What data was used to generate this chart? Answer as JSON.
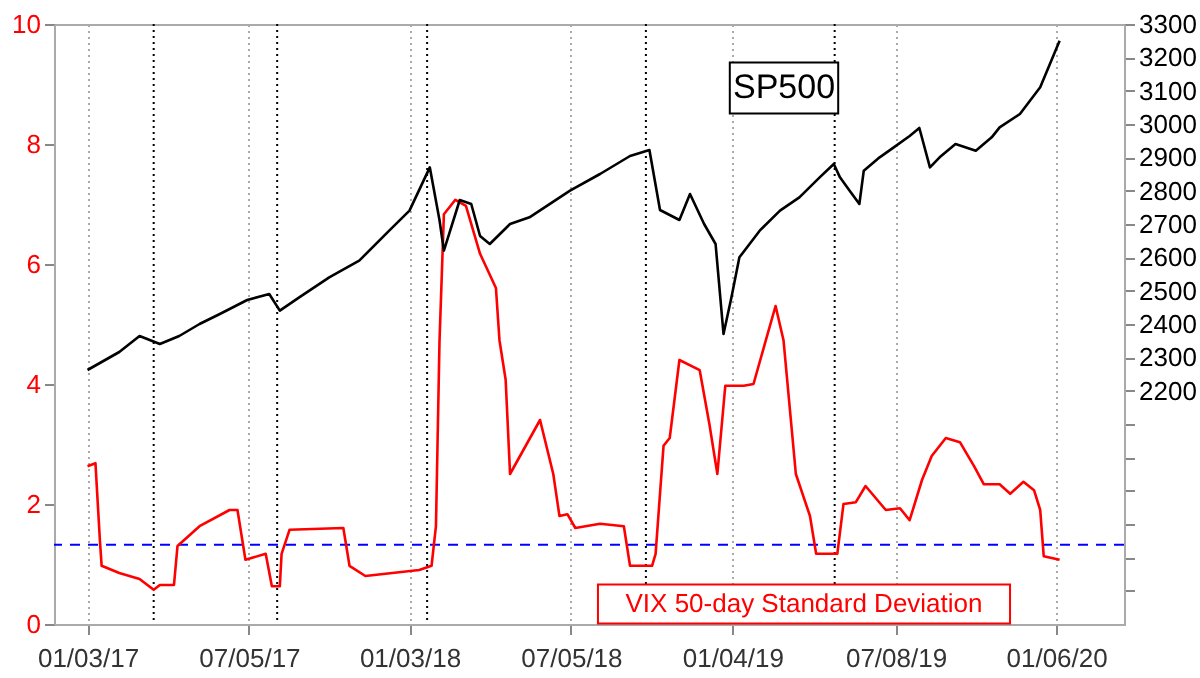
{
  "chart_data": {
    "type": "line",
    "xlim": [
      "2016-11-26",
      "2020-03-23"
    ],
    "xticks": [
      {
        "value": "2017-01-03",
        "label": "01/03/17"
      },
      {
        "value": "2017-07-05",
        "label": "07/05/17"
      },
      {
        "value": "2018-01-03",
        "label": "01/03/18"
      },
      {
        "value": "2018-07-05",
        "label": "07/05/18"
      },
      {
        "value": "2019-01-04",
        "label": "01/04/19"
      },
      {
        "value": "2019-07-08",
        "label": "07/08/19"
      },
      {
        "value": "2020-01-06",
        "label": "01/06/20"
      }
    ],
    "ylim": [
      0,
      10
    ],
    "yticks": [
      0,
      2,
      4,
      6,
      8,
      10
    ],
    "y2lim": [
      1500,
      3300
    ],
    "y2ticks": [
      {
        "value": 1600,
        "label": null
      },
      {
        "value": 1700,
        "label": null
      },
      {
        "value": 1800,
        "label": null
      },
      {
        "value": 1900,
        "label": null
      },
      {
        "value": 2000,
        "label": null
      },
      {
        "value": 2100,
        "label": null
      },
      2200,
      2300,
      2400,
      2500,
      2600,
      2700,
      2800,
      2900,
      3000,
      3100,
      3200,
      3300
    ],
    "grid": "x",
    "legend": false,
    "ref_lines": [
      {
        "axis": "y",
        "value": 1.32,
        "color": "#0000ff",
        "line_style": "dashed"
      },
      {
        "axis": "x",
        "value": "2017-03-19",
        "color": "#000000",
        "line_style": "dotted"
      },
      {
        "axis": "x",
        "value": "2017-08-06",
        "color": "#000000",
        "line_style": "dotted"
      },
      {
        "axis": "x",
        "value": "2018-01-23",
        "color": "#000000",
        "line_style": "dotted"
      },
      {
        "axis": "x",
        "value": "2018-09-28",
        "color": "#000000",
        "line_style": "dotted"
      },
      {
        "axis": "x",
        "value": "2019-04-30",
        "color": "#000000",
        "line_style": "dotted"
      }
    ],
    "series": [
      {
        "name": "SP500",
        "color": "#000000",
        "axis": "y2",
        "x": [
          "2017-01-03",
          "2017-02-08",
          "2017-03-03",
          "2017-03-26",
          "2017-04-17",
          "2017-05-10",
          "2017-06-02",
          "2017-07-03",
          "2017-07-28",
          "2017-08-09",
          "2017-08-31",
          "2017-10-04",
          "2017-11-07",
          "2017-12-11",
          "2018-01-03",
          "2018-01-26",
          "2018-02-06",
          "2018-02-11",
          "2018-03-01",
          "2018-03-14",
          "2018-03-24",
          "2018-04-04",
          "2018-04-27",
          "2018-05-19",
          "2018-07-04",
          "2018-08-07",
          "2018-09-10",
          "2018-10-02",
          "2018-10-14",
          "2018-11-05",
          "2018-11-17",
          "2018-12-03",
          "2018-12-16",
          "2018-12-25",
          "2019-01-03",
          "2019-01-12",
          "2019-02-04",
          "2019-02-27",
          "2019-03-21",
          "2019-04-13",
          "2019-04-29",
          "2019-05-06",
          "2019-05-17",
          "2019-05-28",
          "2019-06-02",
          "2019-06-20",
          "2019-07-06",
          "2019-07-24",
          "2019-08-04",
          "2019-08-16",
          "2019-08-27",
          "2019-09-14",
          "2019-10-07",
          "2019-10-25",
          "2019-11-03",
          "2019-11-26",
          "2019-12-19",
          "2020-01-10"
        ],
        "values": [
          2262,
          2316,
          2364,
          2340,
          2364,
          2400,
          2430,
          2472,
          2490,
          2440,
          2480,
          2540,
          2590,
          2680,
          2740,
          2870,
          2712,
          2620,
          2772,
          2760,
          2664,
          2640,
          2700,
          2720,
          2800,
          2850,
          2904,
          2922,
          2742,
          2712,
          2790,
          2700,
          2640,
          2370,
          2480,
          2600,
          2680,
          2740,
          2780,
          2840,
          2880,
          2840,
          2800,
          2760,
          2860,
          2900,
          2930,
          2964,
          2988,
          2870,
          2900,
          2940,
          2920,
          2960,
          2990,
          3030,
          3110,
          3250
        ]
      },
      {
        "name": "VIX 50-day Standard Deviation",
        "color": "#ff0000",
        "axis": "y",
        "x": [
          "2017-01-03",
          "2017-01-12",
          "2017-01-17",
          "2017-01-19",
          "2017-02-08",
          "2017-03-03",
          "2017-03-19",
          "2017-03-26",
          "2017-04-11",
          "2017-04-15",
          "2017-05-10",
          "2017-06-13",
          "2017-06-22",
          "2017-07-01",
          "2017-07-24",
          "2017-07-31",
          "2017-08-09",
          "2017-08-11",
          "2017-08-20",
          "2017-10-20",
          "2017-10-27",
          "2017-11-14",
          "2018-01-14",
          "2018-01-28",
          "2018-02-02",
          "2018-02-06",
          "2018-02-11",
          "2018-02-24",
          "2018-03-08",
          "2018-03-24",
          "2018-04-11",
          "2018-04-15",
          "2018-04-22",
          "2018-04-27",
          "2018-05-31",
          "2018-06-15",
          "2018-06-22",
          "2018-07-01",
          "2018-07-10",
          "2018-08-07",
          "2018-09-03",
          "2018-09-10",
          "2018-10-05",
          "2018-10-09",
          "2018-10-18",
          "2018-10-25",
          "2018-11-05",
          "2018-11-28",
          "2018-12-09",
          "2018-12-18",
          "2018-12-27",
          "2019-01-17",
          "2019-01-28",
          "2019-02-11",
          "2019-02-22",
          "2019-03-03",
          "2019-03-17",
          "2019-04-02",
          "2019-04-09",
          "2019-05-03",
          "2019-05-10",
          "2019-05-24",
          "2019-06-04",
          "2019-06-27",
          "2019-07-13",
          "2019-07-24",
          "2019-08-07",
          "2019-08-18",
          "2019-09-03",
          "2019-09-19",
          "2019-10-05",
          "2019-10-16",
          "2019-11-03",
          "2019-11-15",
          "2019-11-30",
          "2019-12-12",
          "2019-12-19",
          "2019-12-23",
          "2020-01-10"
        ],
        "values": [
          2.63,
          2.68,
          1.4,
          0.97,
          0.85,
          0.75,
          0.57,
          0.65,
          0.65,
          1.3,
          1.63,
          1.9,
          1.9,
          1.07,
          1.17,
          0.63,
          0.63,
          1.17,
          1.57,
          1.6,
          0.97,
          0.8,
          0.9,
          0.97,
          1.63,
          4.7,
          6.83,
          7.07,
          6.97,
          6.17,
          5.6,
          4.73,
          4.07,
          2.5,
          3.4,
          2.5,
          1.8,
          1.83,
          1.6,
          1.67,
          1.63,
          0.97,
          0.97,
          1.17,
          2.97,
          3.1,
          4.4,
          4.23,
          3.33,
          2.5,
          3.97,
          3.97,
          4.0,
          4.73,
          5.3,
          4.73,
          2.5,
          1.8,
          1.17,
          1.17,
          2.0,
          2.03,
          2.3,
          1.9,
          1.93,
          1.73,
          2.4,
          2.8,
          3.1,
          3.03,
          2.63,
          2.33,
          2.33,
          2.17,
          2.37,
          2.23,
          1.9,
          1.13,
          1.07
        ]
      }
    ]
  }
}
